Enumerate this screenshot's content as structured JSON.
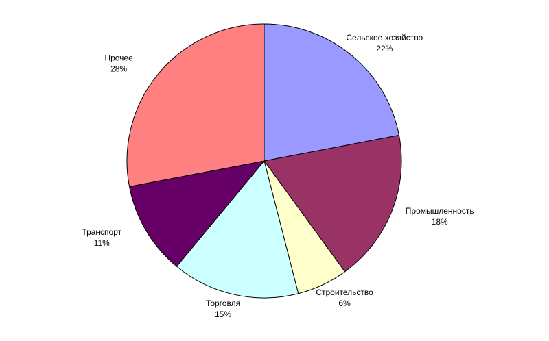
{
  "chart_data": {
    "type": "pie",
    "categories": [
      "Сельское хозяйство",
      "Промышленность",
      "Строительство",
      "Торговля",
      "Транспорт",
      "Прочее"
    ],
    "values": [
      22,
      18,
      6,
      15,
      11,
      28
    ],
    "value_labels": [
      "22%",
      "18%",
      "6%",
      "15%",
      "11%",
      "28%"
    ],
    "colors": [
      "#9999ff",
      "#993366",
      "#ffffcc",
      "#ccffff",
      "#660066",
      "#ff8080"
    ]
  }
}
